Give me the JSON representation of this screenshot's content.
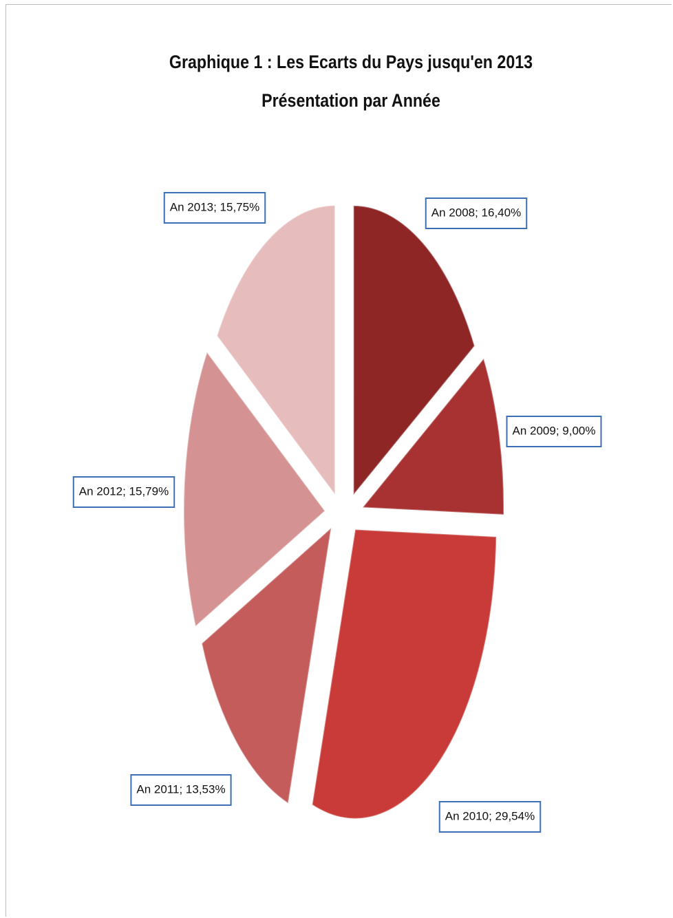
{
  "chart_data": {
    "type": "pie",
    "title": "Graphique 1 : Les Ecarts du Pays jusqu'en 2013 Présentation par Année",
    "values": [
      16.4,
      9.0,
      29.54,
      13.53,
      15.79,
      15.75
    ],
    "value_labels": [
      "An 2008; 16,40%",
      "An 2009; 9,00%",
      "An 2010; 29,54%",
      "An 2011; 13,53%",
      "An 2012; 15,79%",
      "An 2013; 15,75%"
    ],
    "colors": [
      "#8e2626",
      "#a83131",
      "#c83b38",
      "#c45c5c",
      "#d59292",
      "#e6bcbc"
    ]
  }
}
